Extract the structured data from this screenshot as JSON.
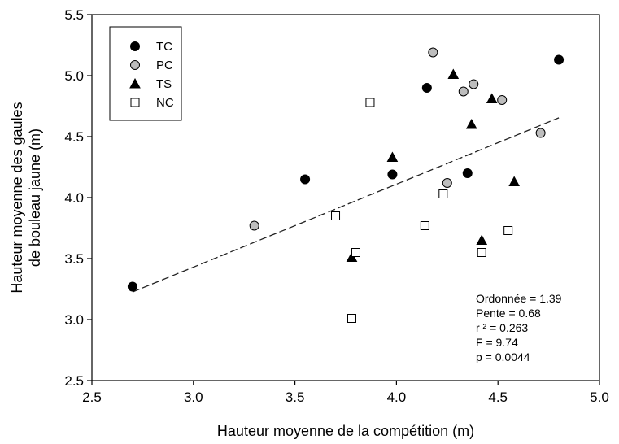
{
  "chart_data": {
    "type": "scatter",
    "xlabel": "Hauteur moyenne de la compétition (m)",
    "ylabel_lines": [
      "Hauteur moyenne des gaules",
      "de bouleau jaune (m)"
    ],
    "xlim": [
      2.5,
      5.0
    ],
    "ylim": [
      2.5,
      5.5
    ],
    "xticks": [
      "2.5",
      "3.0",
      "3.5",
      "4.0",
      "4.5",
      "5.0"
    ],
    "yticks": [
      "2.5",
      "3.0",
      "3.5",
      "4.0",
      "4.5",
      "5.0",
      "5.5"
    ],
    "legend_position": "top-left",
    "grid": false,
    "series": [
      {
        "name": "TC",
        "marker": "filled-circle",
        "color": "#000000",
        "points": [
          [
            2.7,
            3.27
          ],
          [
            3.55,
            4.15
          ],
          [
            3.98,
            4.19
          ],
          [
            4.15,
            4.9
          ],
          [
            4.35,
            4.2
          ],
          [
            4.8,
            5.13
          ]
        ]
      },
      {
        "name": "PC",
        "marker": "gray-circle",
        "color": "#bdbdbd",
        "points": [
          [
            3.3,
            3.77
          ],
          [
            4.18,
            5.19
          ],
          [
            4.25,
            4.12
          ],
          [
            4.33,
            4.87
          ],
          [
            4.38,
            4.93
          ],
          [
            4.52,
            4.8
          ],
          [
            4.71,
            4.53
          ]
        ]
      },
      {
        "name": "TS",
        "marker": "filled-triangle",
        "color": "#000000",
        "points": [
          [
            3.78,
            3.51
          ],
          [
            3.98,
            4.33
          ],
          [
            4.28,
            5.01
          ],
          [
            4.37,
            4.6
          ],
          [
            4.42,
            3.65
          ],
          [
            4.47,
            4.81
          ],
          [
            4.58,
            4.13
          ]
        ]
      },
      {
        "name": "NC",
        "marker": "open-square",
        "color": "#000000",
        "points": [
          [
            3.7,
            3.85
          ],
          [
            3.78,
            3.01
          ],
          [
            3.8,
            3.55
          ],
          [
            3.87,
            4.78
          ],
          [
            4.14,
            3.77
          ],
          [
            4.23,
            4.03
          ],
          [
            4.42,
            3.55
          ],
          [
            4.55,
            3.73
          ]
        ]
      }
    ],
    "regression": {
      "style": "dashed",
      "x_range": [
        2.7,
        4.8
      ],
      "intercept": 1.39,
      "slope": 0.68
    },
    "stats": [
      "Ordonnée = 1.39",
      "Pente = 0.68",
      "r ² = 0.263",
      "F = 9.74",
      "p = 0.0044"
    ]
  }
}
